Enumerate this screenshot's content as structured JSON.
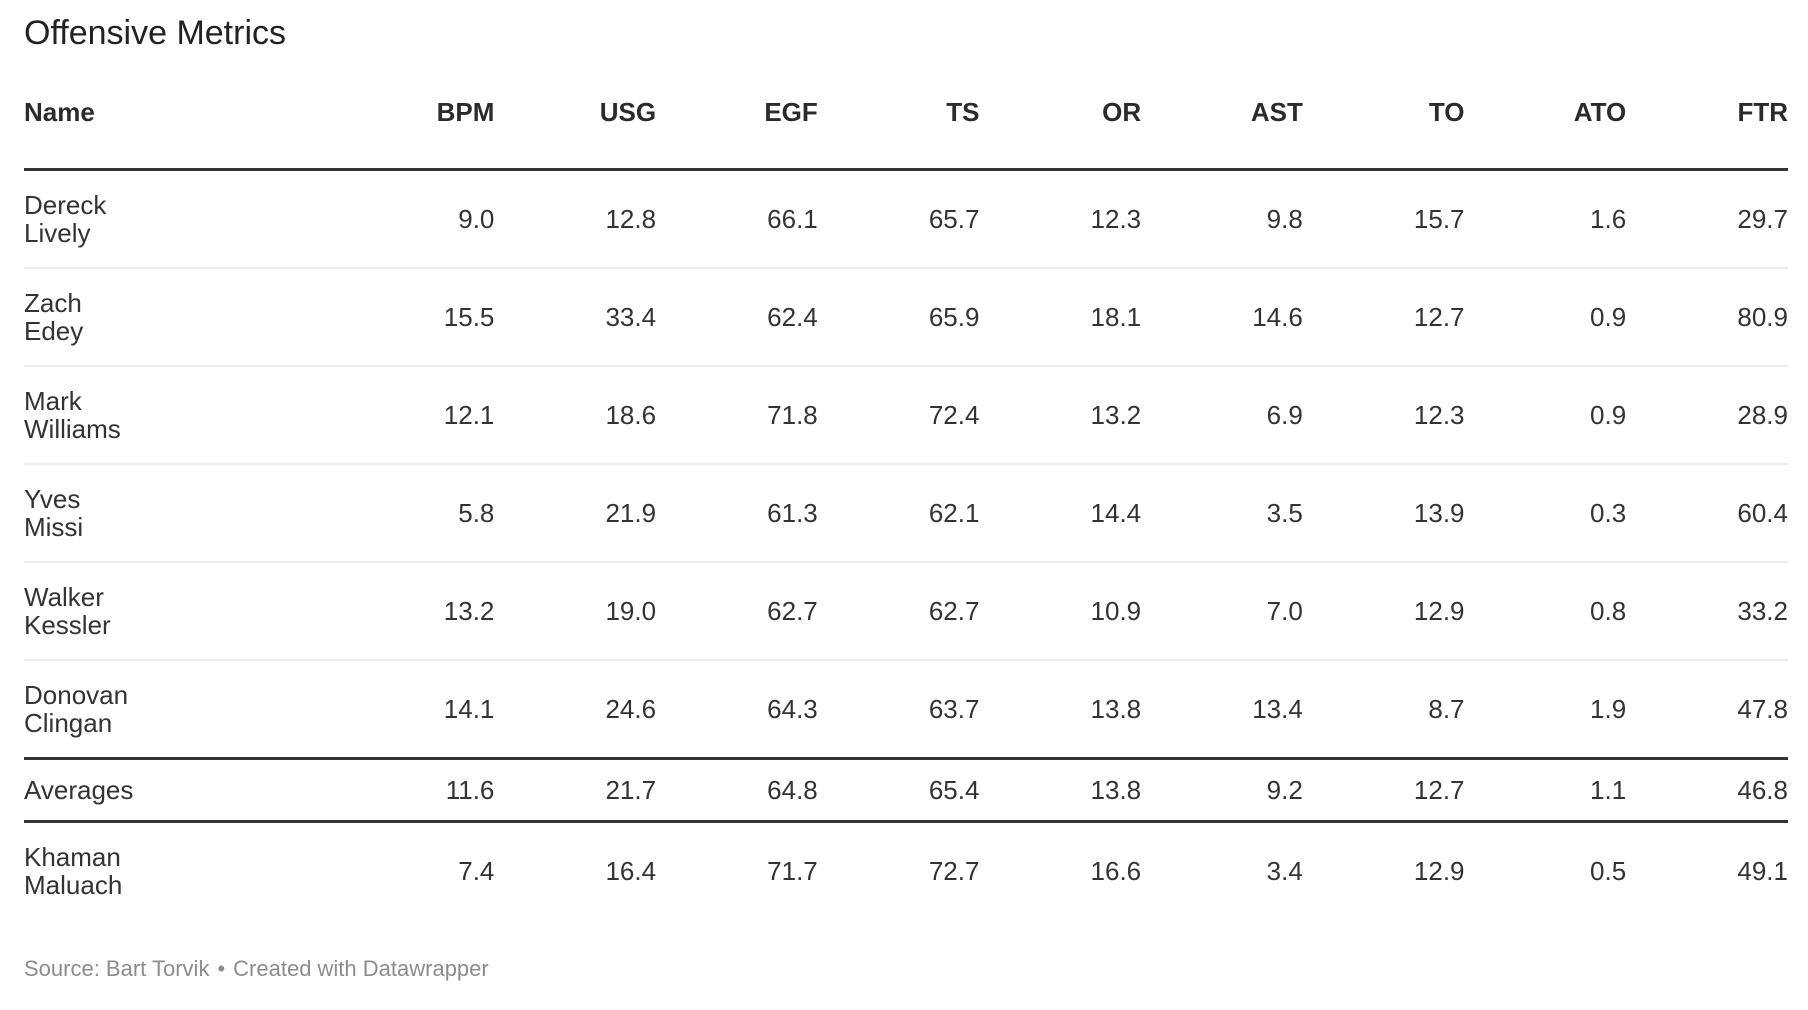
{
  "title": "Offensive Metrics",
  "table": {
    "columns": [
      "Name",
      "BPM",
      "USG",
      "EGF",
      "TS",
      "OR",
      "AST",
      "TO",
      "ATO",
      "FTR"
    ],
    "rows": [
      {
        "name": "Dereck Lively",
        "name_lines": [
          "Dereck",
          "Lively"
        ],
        "summary": false,
        "values": [
          "9.0",
          "12.8",
          "66.1",
          "65.7",
          "12.3",
          "9.8",
          "15.7",
          "1.6",
          "29.7"
        ]
      },
      {
        "name": "Zach Edey",
        "name_lines": [
          "Zach",
          "Edey"
        ],
        "summary": false,
        "values": [
          "15.5",
          "33.4",
          "62.4",
          "65.9",
          "18.1",
          "14.6",
          "12.7",
          "0.9",
          "80.9"
        ]
      },
      {
        "name": "Mark Williams",
        "name_lines": [
          "Mark",
          "Williams"
        ],
        "summary": false,
        "values": [
          "12.1",
          "18.6",
          "71.8",
          "72.4",
          "13.2",
          "6.9",
          "12.3",
          "0.9",
          "28.9"
        ]
      },
      {
        "name": "Yves Missi",
        "name_lines": [
          "Yves",
          "Missi"
        ],
        "summary": false,
        "values": [
          "5.8",
          "21.9",
          "61.3",
          "62.1",
          "14.4",
          "3.5",
          "13.9",
          "0.3",
          "60.4"
        ]
      },
      {
        "name": "Walker Kessler",
        "name_lines": [
          "Walker",
          "Kessler"
        ],
        "summary": false,
        "values": [
          "13.2",
          "19.0",
          "62.7",
          "62.7",
          "10.9",
          "7.0",
          "12.9",
          "0.8",
          "33.2"
        ]
      },
      {
        "name": "Donovan Clingan",
        "name_lines": [
          "Donovan",
          "Clingan"
        ],
        "summary": false,
        "values": [
          "14.1",
          "24.6",
          "64.3",
          "63.7",
          "13.8",
          "13.4",
          "8.7",
          "1.9",
          "47.8"
        ]
      },
      {
        "name": "Averages",
        "name_lines": [
          "Averages"
        ],
        "summary": true,
        "values": [
          "11.6",
          "21.7",
          "64.8",
          "65.4",
          "13.8",
          "9.2",
          "12.7",
          "1.1",
          "46.8"
        ]
      },
      {
        "name": "Khaman Maluach",
        "name_lines": [
          "Khaman",
          "Maluach"
        ],
        "summary": false,
        "values": [
          "7.4",
          "16.4",
          "71.7",
          "72.7",
          "16.6",
          "3.4",
          "12.9",
          "0.5",
          "49.1"
        ]
      }
    ]
  },
  "footer": {
    "source_text": "Source: Bart Torvik",
    "separator": "•",
    "credit_text": "Created with Datawrapper"
  },
  "colors": {
    "title": "#222222",
    "header": "#2b2b2b",
    "body": "#333333",
    "thick": "#333333",
    "thin": "#ececec",
    "footer": "#8c8c8c",
    "bg": "#ffffff"
  },
  "chart_data": {
    "type": "table",
    "title": "Offensive Metrics",
    "columns": [
      "Name",
      "BPM",
      "USG",
      "EGF",
      "TS",
      "OR",
      "AST",
      "TO",
      "ATO",
      "FTR"
    ],
    "rows": [
      [
        "Dereck Lively",
        9.0,
        12.8,
        66.1,
        65.7,
        12.3,
        9.8,
        15.7,
        1.6,
        29.7
      ],
      [
        "Zach Edey",
        15.5,
        33.4,
        62.4,
        65.9,
        18.1,
        14.6,
        12.7,
        0.9,
        80.9
      ],
      [
        "Mark Williams",
        12.1,
        18.6,
        71.8,
        72.4,
        13.2,
        6.9,
        12.3,
        0.9,
        28.9
      ],
      [
        "Yves Missi",
        5.8,
        21.9,
        61.3,
        62.1,
        14.4,
        3.5,
        13.9,
        0.3,
        60.4
      ],
      [
        "Walker Kessler",
        13.2,
        19.0,
        62.7,
        62.7,
        10.9,
        7.0,
        12.9,
        0.8,
        33.2
      ],
      [
        "Donovan Clingan",
        14.1,
        24.6,
        64.3,
        63.7,
        13.8,
        13.4,
        8.7,
        1.9,
        47.8
      ],
      [
        "Averages",
        11.6,
        21.7,
        64.8,
        65.4,
        13.8,
        9.2,
        12.7,
        1.1,
        46.8
      ],
      [
        "Khaman Maluach",
        7.4,
        16.4,
        71.7,
        72.7,
        16.6,
        3.4,
        12.9,
        0.5,
        49.1
      ]
    ],
    "summary_row": "Averages",
    "source": "Bart Torvik"
  }
}
